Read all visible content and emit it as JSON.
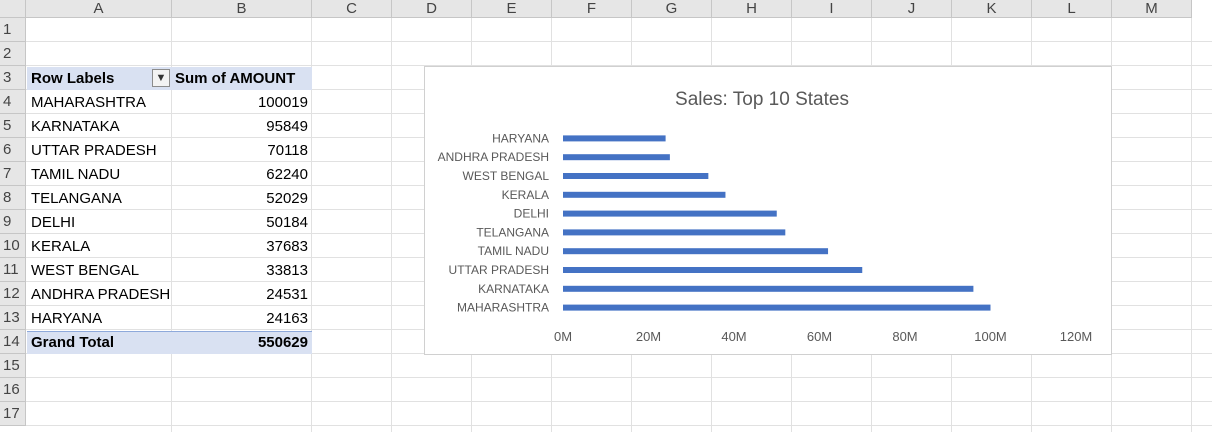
{
  "columns": [
    "A",
    "B",
    "C",
    "D",
    "E",
    "F",
    "G",
    "H",
    "I",
    "J",
    "K",
    "L",
    "M"
  ],
  "rows": [
    "1",
    "2",
    "3",
    "4",
    "5",
    "6",
    "7",
    "8",
    "9",
    "10",
    "11",
    "12",
    "13",
    "14",
    "15",
    "16",
    "17"
  ],
  "pivot": {
    "header_label": "Row Labels",
    "header_value": "Sum of AMOUNT",
    "rows": [
      {
        "label": "MAHARASHTRA",
        "value": "100019"
      },
      {
        "label": "KARNATAKA",
        "value": "95849"
      },
      {
        "label": "UTTAR PRADESH",
        "value": "70118"
      },
      {
        "label": "TAMIL NADU",
        "value": "62240"
      },
      {
        "label": "TELANGANA",
        "value": "52029"
      },
      {
        "label": "DELHI",
        "value": "50184"
      },
      {
        "label": "KERALA",
        "value": "37683"
      },
      {
        "label": "WEST BENGAL",
        "value": "33813"
      },
      {
        "label": "ANDHRA PRADESH",
        "value": "24531"
      },
      {
        "label": "HARYANA",
        "value": "24163"
      }
    ],
    "total_label": "Grand Total",
    "total_value": "550629",
    "filter_icon": "filter-dropdown-icon"
  },
  "chart_data": {
    "type": "bar",
    "orientation": "horizontal",
    "title": "Sales: Top 10 States",
    "categories": [
      "MAHARASHTRA",
      "KARNATAKA",
      "UTTAR PRADESH",
      "TAMIL NADU",
      "TELANGANA",
      "DELHI",
      "KERALA",
      "WEST BENGAL",
      "ANDHRA PRADESH",
      "HARYANA"
    ],
    "values": [
      100,
      96,
      70,
      62,
      52,
      50,
      38,
      34,
      25,
      24
    ],
    "xlim": [
      0,
      120
    ],
    "xticks": [
      "0M",
      "20M",
      "40M",
      "60M",
      "80M",
      "100M",
      "120M"
    ],
    "xlabel": "",
    "ylabel": "",
    "bar_color": "#4472c4",
    "grid": false,
    "legend": "none"
  },
  "colors": {
    "header_bg": "#e6e6e6",
    "pivot_band": "#d9e1f2",
    "bar": "#4472c4"
  }
}
